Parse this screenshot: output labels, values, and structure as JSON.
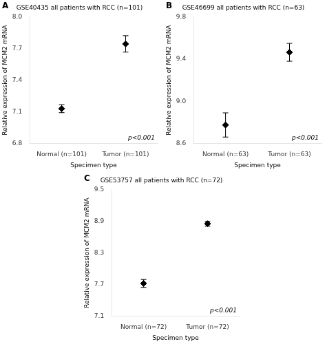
{
  "chart_data": [
    {
      "type": "scatter",
      "panel_label": "A",
      "title": "GSE40435 all patients with RCC (n=101)",
      "categories": [
        "Normal (n=101)",
        "Tumor (n=101)"
      ],
      "values": [
        7.13,
        7.745
      ],
      "errors": [
        0.038,
        0.078
      ],
      "ylabel": "Relative expression of MCM2 mRNA",
      "xlabel": "Specimen type",
      "ylim": [
        6.8,
        8.0
      ],
      "yticks": [
        6.8,
        7.1,
        7.4,
        7.7,
        {
          "value": 8.0,
          "label": "8.0"
        }
      ],
      "annotations": [
        "p<0.001"
      ],
      "marker": "diamond",
      "color": "black",
      "grid": false
    },
    {
      "type": "scatter",
      "panel_label": "B",
      "title": "GSE46699 all patients with RCC (n=63)",
      "categories": [
        "Normal (n=63)",
        "Tumor (n=63)"
      ],
      "values": [
        8.775,
        9.465
      ],
      "errors": [
        0.115,
        0.085
      ],
      "ylabel": "Relative expression of MCM2 mRNA",
      "xlabel": "Specimen type",
      "ylim": [
        8.6,
        9.8
      ],
      "yticks": [
        8.6,
        {
          "value": 9.0,
          "label": "9.0"
        },
        9.4,
        9.8
      ],
      "annotations": [
        "p<0.001"
      ],
      "marker": "diamond",
      "color": "black",
      "grid": false
    },
    {
      "type": "scatter",
      "panel_label": "C",
      "title": "GSE53757 all patients with RCC (n=72)",
      "categories": [
        "Normal (n=72)",
        "Tumor (n=72)"
      ],
      "values": [
        7.72,
        8.855
      ],
      "errors": [
        0.075,
        0.048
      ],
      "ylabel": "Relative expression of MCM2 mRNA",
      "xlabel": "Specimen type",
      "ylim": [
        7.1,
        9.5
      ],
      "yticks": [
        7.1,
        7.7,
        8.3,
        8.9,
        9.5
      ],
      "annotations": [
        "p<0.001"
      ],
      "marker": "diamond",
      "color": "black",
      "grid": false
    }
  ]
}
